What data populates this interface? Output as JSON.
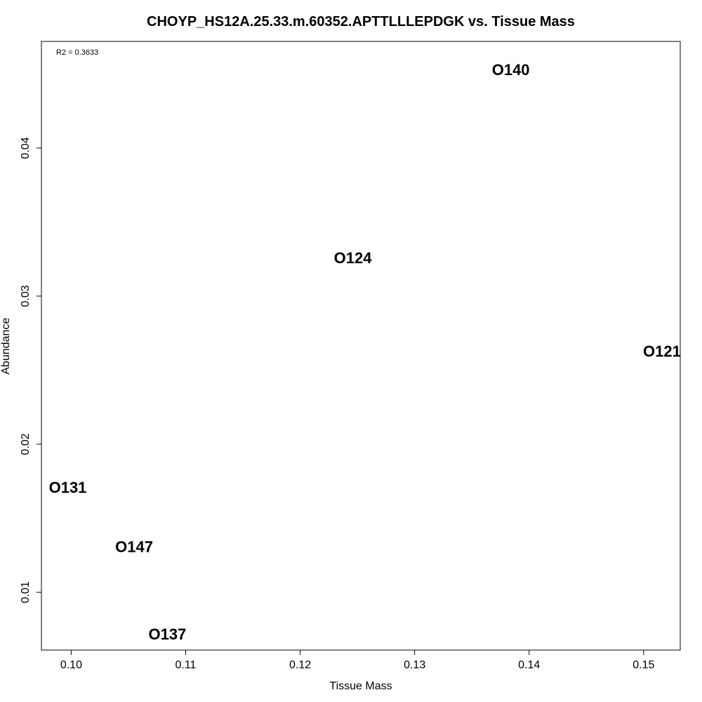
{
  "chart_data": {
    "type": "scatter",
    "title": "CHOYP_HS12A.25.33.m.60352.APTTLLLEPDGK vs. Tissue Mass",
    "xlabel": "Tissue Mass",
    "ylabel": "Abundance",
    "annotation": "R2 = 0.3633",
    "xlim": [
      0.0974,
      0.1532
    ],
    "ylim": [
      0.0061,
      0.0472
    ],
    "x_ticks": [
      0.1,
      0.11,
      0.12,
      0.13,
      0.14,
      0.15
    ],
    "x_tick_labels": [
      "0.10",
      "0.11",
      "0.12",
      "0.13",
      "0.14",
      "0.15"
    ],
    "y_ticks": [
      0.01,
      0.02,
      0.03,
      0.04
    ],
    "y_tick_labels": [
      "0.01",
      "0.02",
      "0.03",
      "0.04"
    ],
    "points": [
      {
        "label": "O140",
        "x": 0.1384,
        "y": 0.0453
      },
      {
        "label": "O124",
        "x": 0.1246,
        "y": 0.0326
      },
      {
        "label": "O121",
        "x": 0.1516,
        "y": 0.0263
      },
      {
        "label": "O131",
        "x": 0.0997,
        "y": 0.0171
      },
      {
        "label": "O147",
        "x": 0.1055,
        "y": 0.0131
      },
      {
        "label": "O137",
        "x": 0.1084,
        "y": 0.0072
      }
    ]
  }
}
